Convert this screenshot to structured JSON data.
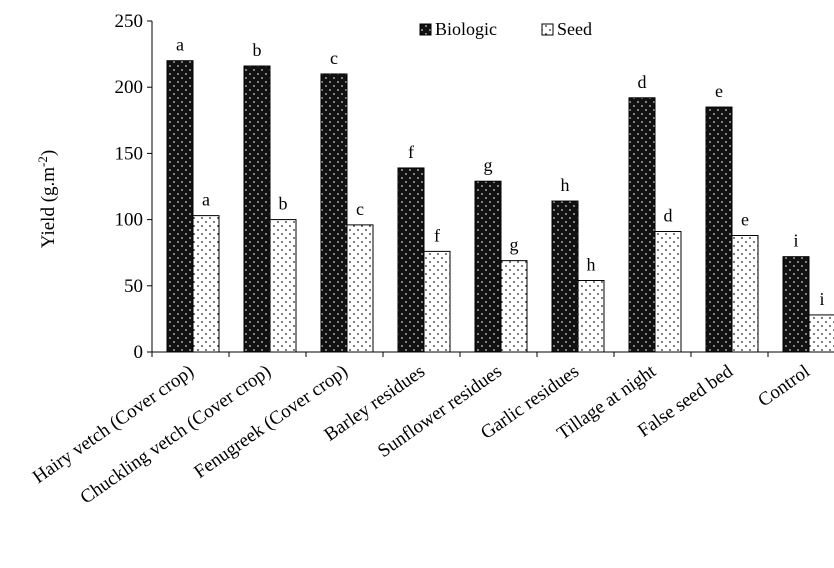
{
  "chart_data": {
    "type": "bar",
    "ylabel": "Yield (g.m",
    "ylabel_sup": "-2",
    "ylabel_close": ")",
    "ylim": [
      0,
      250
    ],
    "yticks": [
      "0",
      "50",
      "100",
      "150",
      "200",
      "250"
    ],
    "categories": [
      "Hairy vetch (Cover crop)",
      "Chuckling vetch (Cover crop)",
      "Fenugreek (Cover crop)",
      "Barley residues",
      "Sunflower residues",
      "Garlic residues",
      "Tillage at night",
      "False seed bed",
      "Control"
    ],
    "series": [
      {
        "name": "Biologic",
        "values": [
          220,
          216,
          210,
          139,
          129,
          114,
          192,
          185,
          72
        ],
        "labels": [
          "a",
          "b",
          "c",
          "f",
          "g",
          "h",
          "d",
          "e",
          "i"
        ],
        "color": "#111111",
        "pattern": "dark-dotted"
      },
      {
        "name": "Seed",
        "values": [
          103,
          100,
          96,
          76,
          69,
          54,
          91,
          88,
          28
        ],
        "labels": [
          "a",
          "b",
          "c",
          "f",
          "g",
          "h",
          "d",
          "e",
          "i"
        ],
        "color": "#ffffff",
        "pattern": "light-dotted"
      }
    ],
    "legend_position": "top-right",
    "grid": false
  }
}
